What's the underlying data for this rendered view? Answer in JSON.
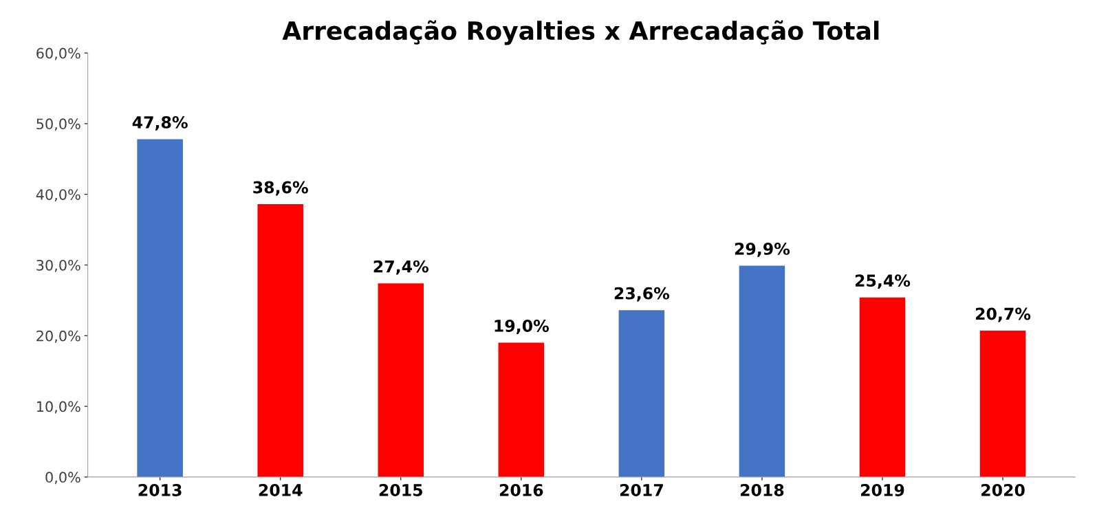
{
  "chart_data": {
    "type": "bar",
    "title": "Arrecadação Royalties x Arrecadação Total",
    "categories": [
      "2013",
      "2014",
      "2015",
      "2016",
      "2017",
      "2018",
      "2019",
      "2020"
    ],
    "values": [
      47.8,
      38.6,
      27.4,
      19.0,
      23.6,
      29.9,
      25.4,
      20.7
    ],
    "colors": [
      "#4472c4",
      "#ff0000",
      "#ff0000",
      "#ff0000",
      "#4472c4",
      "#4472c4",
      "#ff0000",
      "#ff0000"
    ],
    "value_labels": [
      "47,8%",
      "38,6%",
      "27,4%",
      "19,0%",
      "23,6%",
      "29,9%",
      "25,4%",
      "20,7%"
    ],
    "ylim": [
      0,
      60
    ],
    "yticks": [
      {
        "value": 0,
        "label": "0,0%"
      },
      {
        "value": 10,
        "label": "10,0%"
      },
      {
        "value": 20,
        "label": "20,0%"
      },
      {
        "value": 30,
        "label": "30,0%"
      },
      {
        "value": 40,
        "label": "40,0%"
      },
      {
        "value": 50,
        "label": "50,0%"
      },
      {
        "value": 60,
        "label": "60,0%"
      }
    ],
    "grid": false
  }
}
